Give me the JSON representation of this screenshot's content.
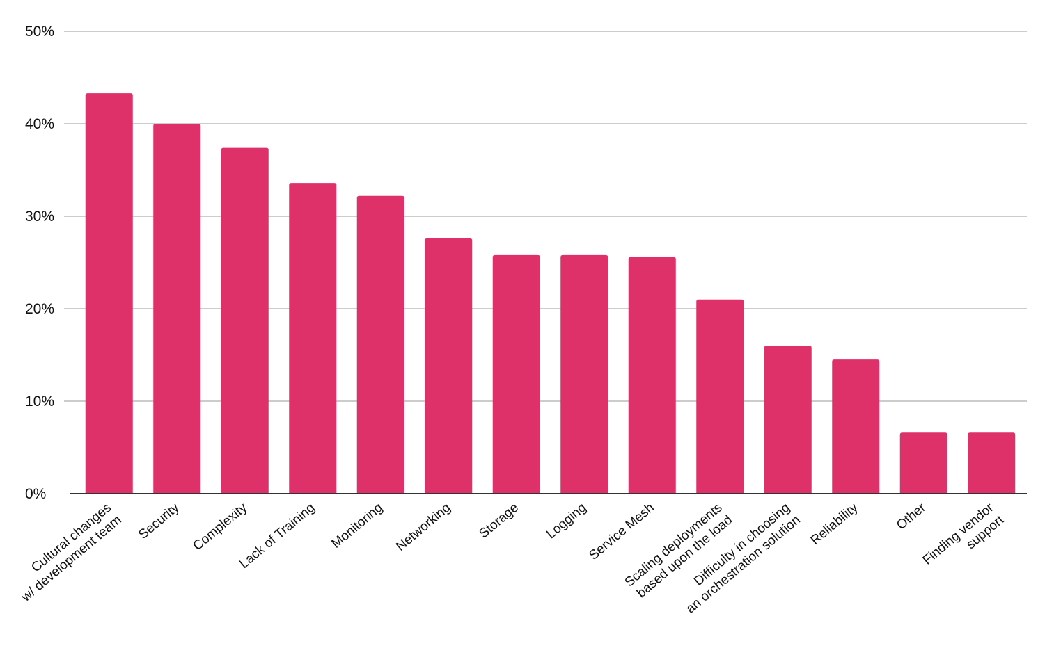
{
  "chart_data": {
    "type": "bar",
    "title": "",
    "xlabel": "",
    "ylabel": "",
    "ylim": [
      0,
      50
    ],
    "yticks": [
      "0%",
      "10%",
      "20%",
      "30%",
      "40%",
      "50%"
    ],
    "grid": true,
    "legend": "none",
    "categories": [
      [
        "Cultural changes",
        "w/ development team"
      ],
      [
        "Security"
      ],
      [
        "Complexity"
      ],
      [
        "Lack of Training"
      ],
      [
        "Monitoring"
      ],
      [
        "Networking"
      ],
      [
        "Storage"
      ],
      [
        "Logging"
      ],
      [
        "Service Mesh"
      ],
      [
        "Scaling deployments",
        "based upon the load"
      ],
      [
        "Difficulty in choosing",
        "an orchestration solution"
      ],
      [
        "Reliability"
      ],
      [
        "Other"
      ],
      [
        "Finding vendor",
        "support"
      ]
    ],
    "values": [
      43.3,
      40.0,
      37.4,
      33.6,
      32.2,
      27.6,
      25.8,
      25.8,
      25.6,
      21.0,
      16.0,
      14.5,
      6.6,
      6.6
    ],
    "bar_color": "#de3069",
    "grid_color": "#cccccc",
    "axis_color": "#333333"
  }
}
